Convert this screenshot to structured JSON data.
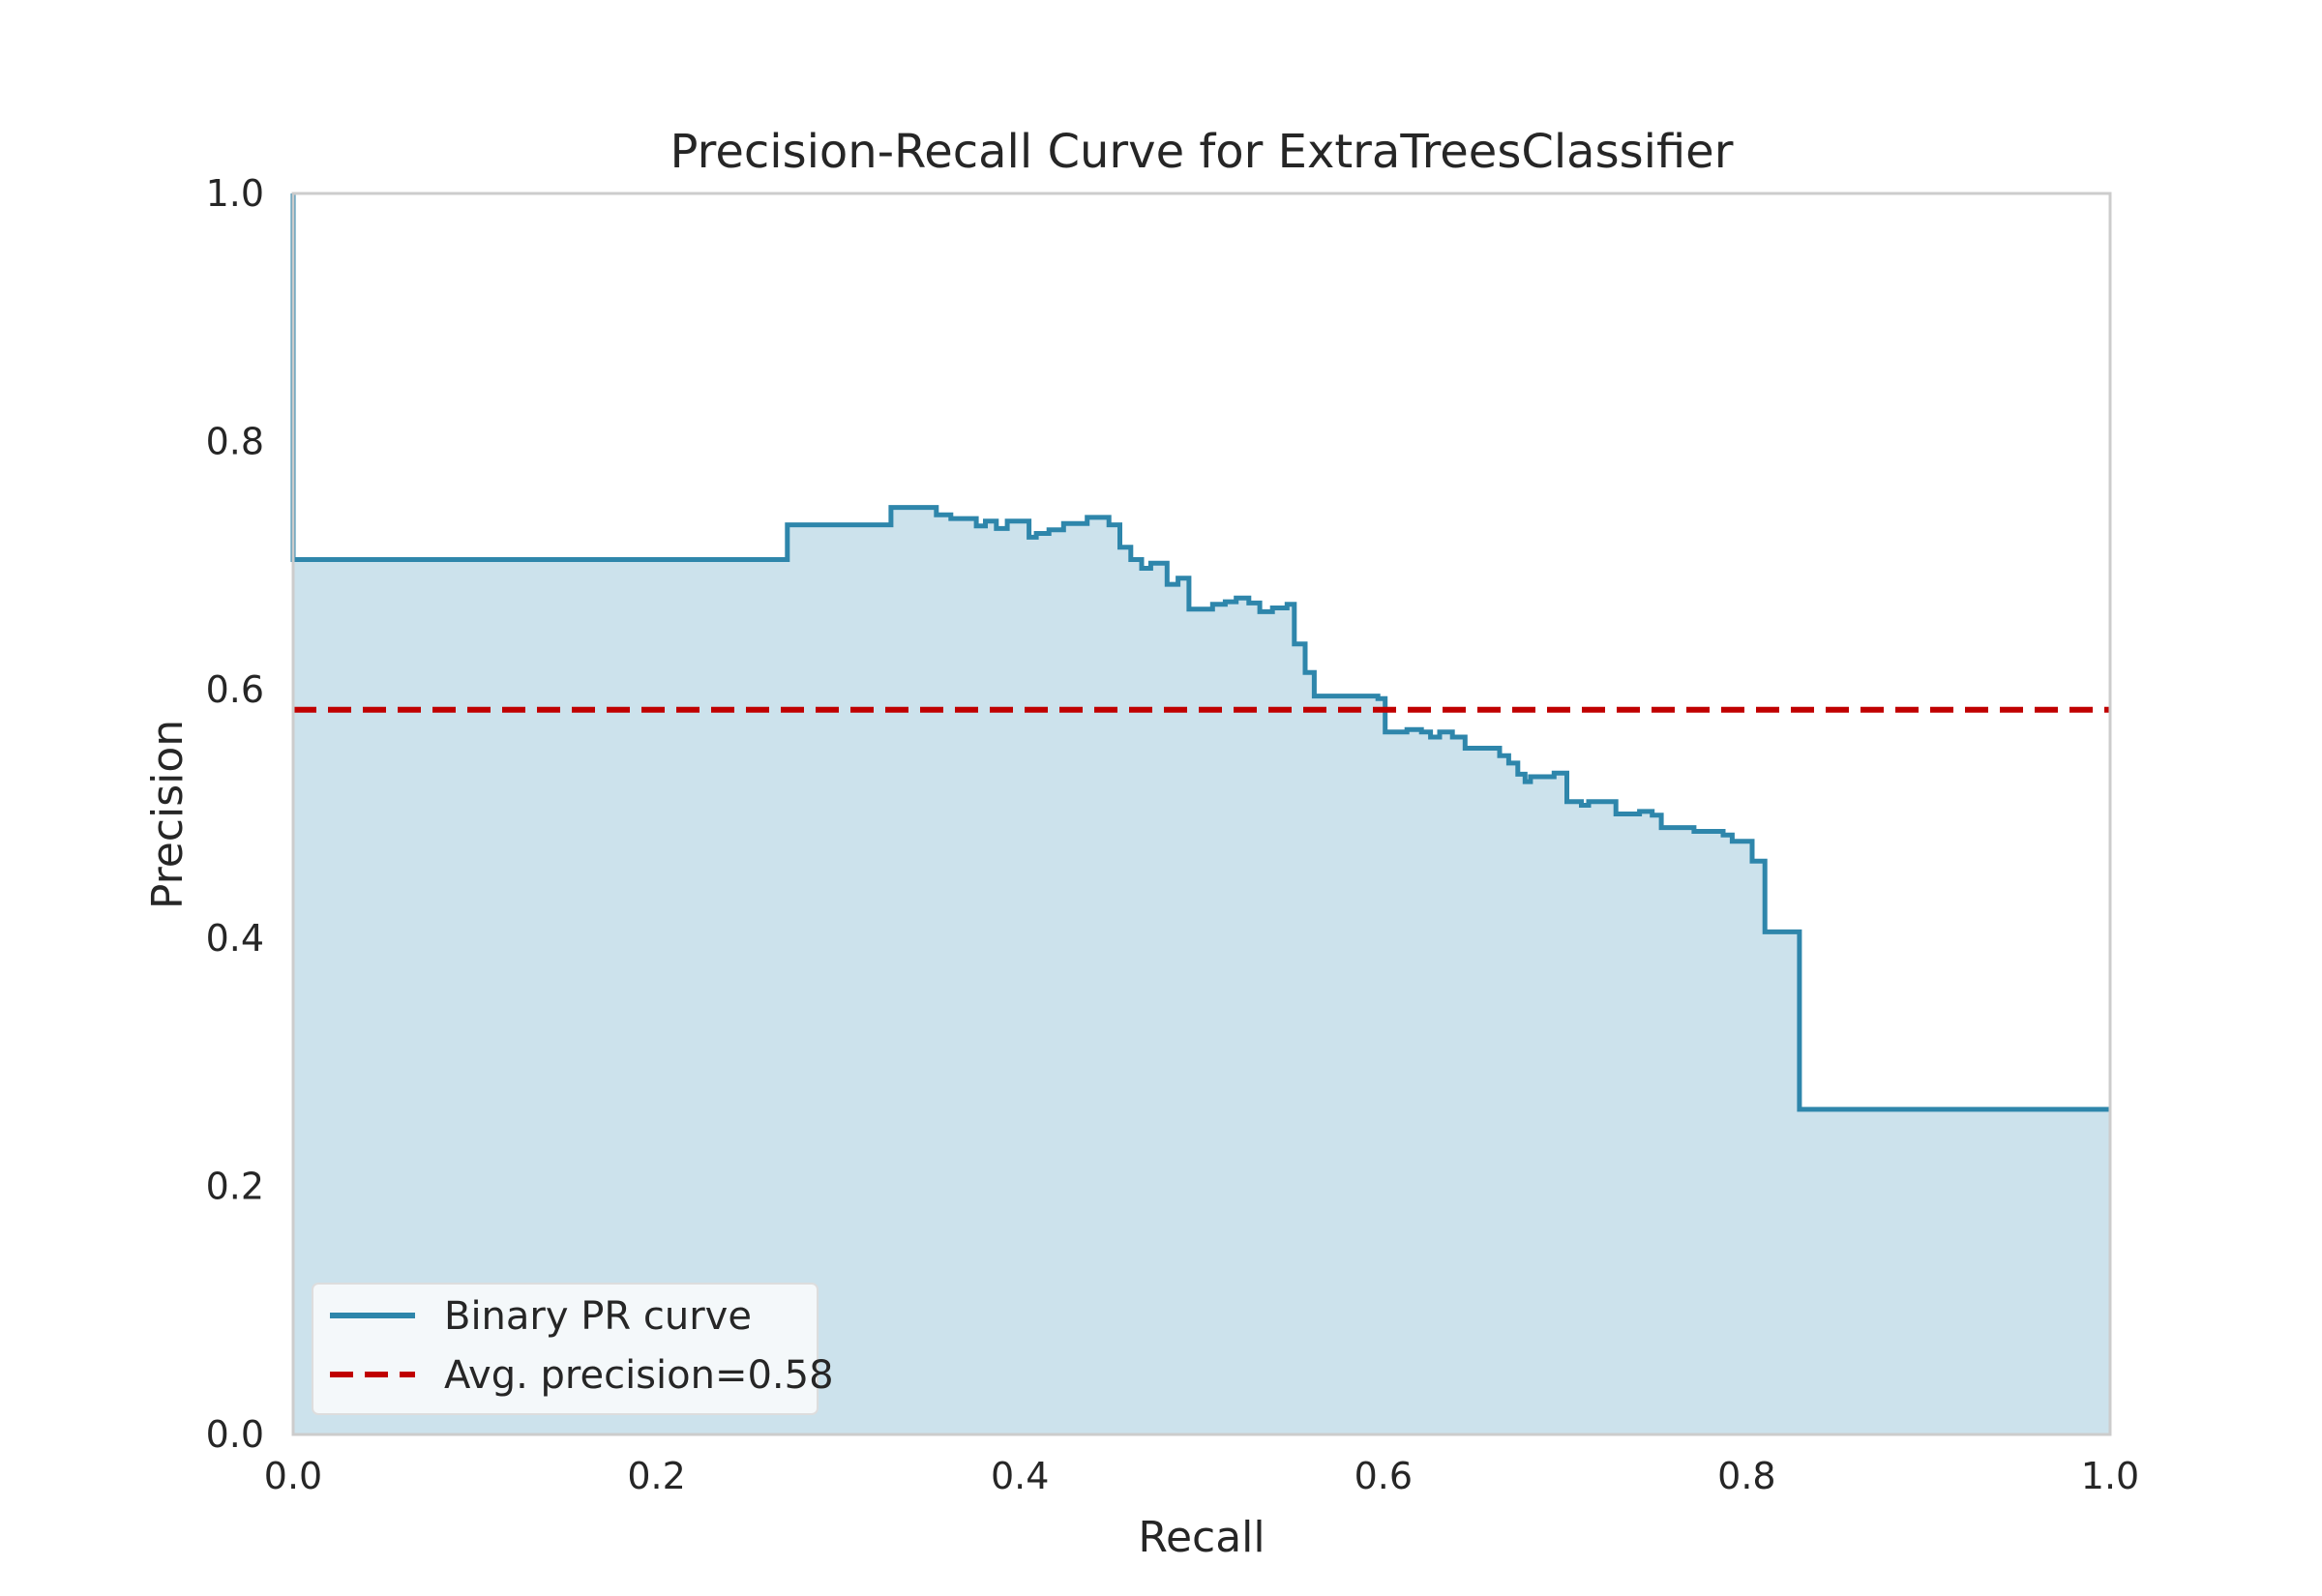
{
  "chart_data": {
    "type": "line",
    "title": "Precision-Recall Curve for ExtraTreesClassifier",
    "xlabel": "Recall",
    "ylabel": "Precision",
    "xlim": [
      0.0,
      1.0
    ],
    "ylim": [
      0.0,
      1.0
    ],
    "xticks": [
      "0.0",
      "0.2",
      "0.4",
      "0.6",
      "0.8",
      "1.0"
    ],
    "yticks": [
      "0.0",
      "0.2",
      "0.4",
      "0.6",
      "0.8",
      "1.0"
    ],
    "grid": false,
    "legend_position": "lower-left",
    "series": [
      {
        "name": "Binary PR curve",
        "style": "step",
        "color": "#2E86AB",
        "fill_color": "#CCE2EC",
        "points": [
          [
            0.0,
            1.0
          ],
          [
            0.0,
            0.705
          ],
          [
            0.272,
            0.705
          ],
          [
            0.272,
            0.733
          ],
          [
            0.329,
            0.733
          ],
          [
            0.329,
            0.747
          ],
          [
            0.354,
            0.747
          ],
          [
            0.354,
            0.741
          ],
          [
            0.362,
            0.741
          ],
          [
            0.362,
            0.738
          ],
          [
            0.376,
            0.738
          ],
          [
            0.376,
            0.732
          ],
          [
            0.381,
            0.732
          ],
          [
            0.381,
            0.736
          ],
          [
            0.387,
            0.736
          ],
          [
            0.387,
            0.73
          ],
          [
            0.393,
            0.73
          ],
          [
            0.393,
            0.736
          ],
          [
            0.405,
            0.736
          ],
          [
            0.405,
            0.723
          ],
          [
            0.409,
            0.723
          ],
          [
            0.409,
            0.726
          ],
          [
            0.416,
            0.726
          ],
          [
            0.416,
            0.729
          ],
          [
            0.424,
            0.729
          ],
          [
            0.424,
            0.734
          ],
          [
            0.437,
            0.734
          ],
          [
            0.437,
            0.739
          ],
          [
            0.449,
            0.739
          ],
          [
            0.449,
            0.733
          ],
          [
            0.455,
            0.733
          ],
          [
            0.455,
            0.715
          ],
          [
            0.461,
            0.715
          ],
          [
            0.461,
            0.705
          ],
          [
            0.467,
            0.705
          ],
          [
            0.467,
            0.698
          ],
          [
            0.472,
            0.698
          ],
          [
            0.472,
            0.702
          ],
          [
            0.481,
            0.702
          ],
          [
            0.481,
            0.685
          ],
          [
            0.487,
            0.685
          ],
          [
            0.487,
            0.69
          ],
          [
            0.493,
            0.69
          ],
          [
            0.493,
            0.665
          ],
          [
            0.506,
            0.665
          ],
          [
            0.506,
            0.669
          ],
          [
            0.513,
            0.669
          ],
          [
            0.513,
            0.671
          ],
          [
            0.519,
            0.671
          ],
          [
            0.519,
            0.674
          ],
          [
            0.526,
            0.674
          ],
          [
            0.526,
            0.67
          ],
          [
            0.532,
            0.67
          ],
          [
            0.532,
            0.663
          ],
          [
            0.539,
            0.663
          ],
          [
            0.539,
            0.666
          ],
          [
            0.547,
            0.666
          ],
          [
            0.547,
            0.669
          ],
          [
            0.551,
            0.669
          ],
          [
            0.551,
            0.637
          ],
          [
            0.557,
            0.637
          ],
          [
            0.557,
            0.614
          ],
          [
            0.562,
            0.614
          ],
          [
            0.562,
            0.595
          ],
          [
            0.597,
            0.595
          ],
          [
            0.597,
            0.593
          ],
          [
            0.601,
            0.593
          ],
          [
            0.601,
            0.566
          ],
          [
            0.613,
            0.566
          ],
          [
            0.613,
            0.568
          ],
          [
            0.621,
            0.568
          ],
          [
            0.621,
            0.566
          ],
          [
            0.626,
            0.566
          ],
          [
            0.626,
            0.562
          ],
          [
            0.631,
            0.562
          ],
          [
            0.631,
            0.566
          ],
          [
            0.638,
            0.566
          ],
          [
            0.638,
            0.562
          ],
          [
            0.645,
            0.562
          ],
          [
            0.645,
            0.553
          ],
          [
            0.664,
            0.553
          ],
          [
            0.664,
            0.547
          ],
          [
            0.669,
            0.547
          ],
          [
            0.669,
            0.541
          ],
          [
            0.674,
            0.541
          ],
          [
            0.674,
            0.532
          ],
          [
            0.678,
            0.532
          ],
          [
            0.678,
            0.526
          ],
          [
            0.681,
            0.526
          ],
          [
            0.681,
            0.53
          ],
          [
            0.694,
            0.53
          ],
          [
            0.694,
            0.533
          ],
          [
            0.701,
            0.533
          ],
          [
            0.701,
            0.51
          ],
          [
            0.709,
            0.51
          ],
          [
            0.709,
            0.507
          ],
          [
            0.713,
            0.507
          ],
          [
            0.713,
            0.51
          ],
          [
            0.728,
            0.51
          ],
          [
            0.728,
            0.5
          ],
          [
            0.741,
            0.5
          ],
          [
            0.741,
            0.502
          ],
          [
            0.748,
            0.502
          ],
          [
            0.748,
            0.499
          ],
          [
            0.753,
            0.499
          ],
          [
            0.753,
            0.489
          ],
          [
            0.771,
            0.489
          ],
          [
            0.771,
            0.486
          ],
          [
            0.787,
            0.486
          ],
          [
            0.787,
            0.483
          ],
          [
            0.792,
            0.483
          ],
          [
            0.792,
            0.478
          ],
          [
            0.803,
            0.478
          ],
          [
            0.803,
            0.462
          ],
          [
            0.81,
            0.462
          ],
          [
            0.81,
            0.405
          ],
          [
            0.829,
            0.405
          ],
          [
            0.829,
            0.262
          ],
          [
            1.0,
            0.262
          ]
        ]
      },
      {
        "name": "Avg. precision=0.58",
        "style": "dashed",
        "color": "#C00000",
        "y": 0.584
      }
    ]
  }
}
